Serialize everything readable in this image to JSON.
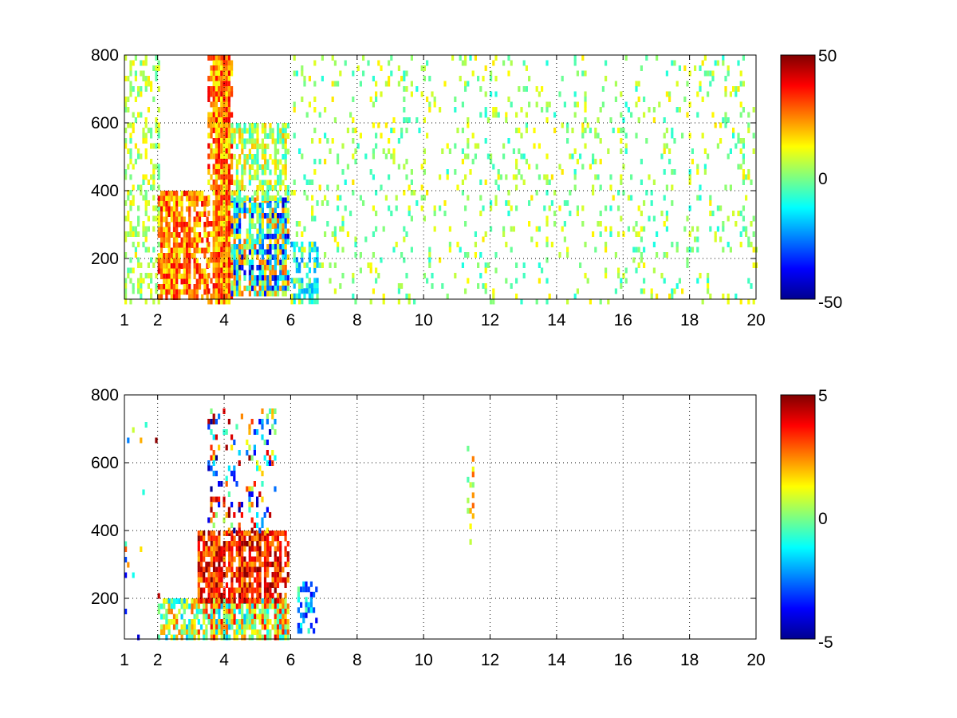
{
  "chart_data": [
    {
      "type": "heatmap",
      "title": "",
      "xlabel": "",
      "ylabel": "",
      "xlim": [
        1,
        20
      ],
      "ylim": [
        80,
        800
      ],
      "x_ticks": [
        1,
        2,
        4,
        6,
        8,
        10,
        12,
        14,
        16,
        18,
        20
      ],
      "x_tick_labels": [
        "1",
        "2",
        "4",
        "6",
        "8",
        "10",
        "12",
        "14",
        "16",
        "18",
        "20"
      ],
      "y_ticks": [
        200,
        400,
        600,
        800
      ],
      "y_tick_labels": [
        "200",
        "400",
        "600",
        "800"
      ],
      "colorbar": {
        "min": -50,
        "max": 50,
        "tick_labels": [
          "50",
          "0",
          "-50"
        ],
        "colormap": "jet"
      },
      "grid": true,
      "regions": [
        {
          "x": [
            1,
            2
          ],
          "y": [
            80,
            800
          ],
          "value_range": [
            -5,
            15
          ],
          "density": 0.35
        },
        {
          "x": [
            2,
            3.5
          ],
          "y": [
            80,
            400
          ],
          "value_range": [
            10,
            40
          ],
          "density": 0.8
        },
        {
          "x": [
            3.5,
            4.2
          ],
          "y": [
            80,
            800
          ],
          "value_range": [
            10,
            40
          ],
          "density": 0.85
        },
        {
          "x": [
            4.2,
            5.9
          ],
          "y": [
            100,
            380
          ],
          "value_range": [
            -45,
            30
          ],
          "density": 0.85
        },
        {
          "x": [
            4.2,
            5.9
          ],
          "y": [
            380,
            600
          ],
          "value_range": [
            -10,
            20
          ],
          "density": 0.6
        },
        {
          "x": [
            6,
            6.8
          ],
          "y": [
            80,
            250
          ],
          "value_range": [
            -25,
            -5
          ],
          "density": 0.55
        },
        {
          "x": [
            6,
            20
          ],
          "y": [
            80,
            800
          ],
          "value_range": [
            -10,
            15
          ],
          "density": 0.1
        }
      ]
    },
    {
      "type": "heatmap",
      "title": "",
      "xlabel": "",
      "ylabel": "",
      "xlim": [
        1,
        20
      ],
      "ylim": [
        80,
        800
      ],
      "x_ticks": [
        1,
        2,
        4,
        6,
        8,
        10,
        12,
        14,
        16,
        18,
        20
      ],
      "x_tick_labels": [
        "1",
        "2",
        "4",
        "6",
        "8",
        "10",
        "12",
        "14",
        "16",
        "18",
        "20"
      ],
      "y_ticks": [
        200,
        400,
        600,
        800
      ],
      "y_tick_labels": [
        "200",
        "400",
        "600",
        "800"
      ],
      "colorbar": {
        "min": -5,
        "max": 5,
        "tick_labels": [
          "5",
          "0",
          "-5"
        ],
        "colormap": "jet"
      },
      "grid": true,
      "regions": [
        {
          "x": [
            1,
            2
          ],
          "y": [
            80,
            720
          ],
          "value_range": [
            -5,
            5
          ],
          "density": 0.03
        },
        {
          "x": [
            2,
            3.2
          ],
          "y": [
            80,
            200
          ],
          "value_range": [
            -2,
            3
          ],
          "density": 0.6
        },
        {
          "x": [
            3.2,
            5.9
          ],
          "y": [
            80,
            200
          ],
          "value_range": [
            -2,
            4
          ],
          "density": 0.75
        },
        {
          "x": [
            3.2,
            5.9
          ],
          "y": [
            200,
            400
          ],
          "value_range": [
            2,
            5
          ],
          "density": 0.7
        },
        {
          "x": [
            3.5,
            5.5
          ],
          "y": [
            400,
            760
          ],
          "value_range": [
            -5,
            5
          ],
          "density": 0.2
        },
        {
          "x": [
            6.2,
            6.8
          ],
          "y": [
            100,
            250
          ],
          "value_range": [
            -4,
            0
          ],
          "density": 0.35
        },
        {
          "x": [
            11.3,
            11.5
          ],
          "y": [
            330,
            650
          ],
          "value_range": [
            -2,
            3
          ],
          "density": 0.3
        }
      ]
    }
  ]
}
